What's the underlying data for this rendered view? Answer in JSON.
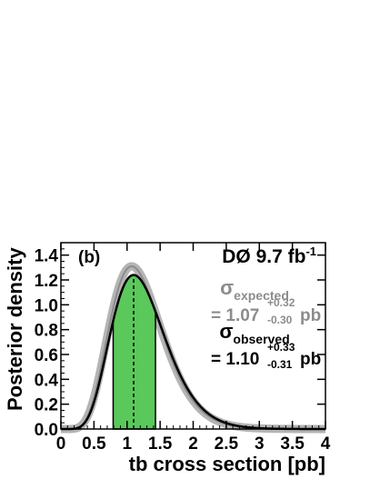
{
  "chart_data": {
    "type": "area",
    "panel_label": "(b)",
    "experiment_label": "DØ 9.7 fb",
    "experiment_label_sup": "-1",
    "xlabel": "tb cross section [pb]",
    "ylabel": "Posterior density",
    "xlim": [
      0,
      4
    ],
    "ylim": [
      0,
      1.5
    ],
    "x_ticks": [
      "0",
      "0.5",
      "1",
      "1.5",
      "2",
      "2.5",
      "3",
      "3.5",
      "4"
    ],
    "y_ticks": [
      "0.0",
      "0.2",
      "0.4",
      "0.6",
      "0.8",
      "1.0",
      "1.2",
      "1.4"
    ],
    "expected": {
      "label": "σ",
      "label_sub": "expected",
      "value_prefix": "= 1.07",
      "err_up": "+0.32",
      "err_down": "-0.30",
      "unit": "pb",
      "peak_x": 1.07,
      "peak_y": 1.31,
      "color": "#8c8c8c"
    },
    "observed": {
      "label": "σ",
      "label_sub": "observed",
      "value_prefix": "= 1.10",
      "err_up": "+0.33",
      "err_down": "-0.31",
      "unit": "pb",
      "peak_x": 1.1,
      "peak_y": 1.24,
      "color": "#000000"
    },
    "interval_68": [
      0.79,
      1.43
    ],
    "fill_color": "#5ac85a",
    "central_line_x": 1.1
  }
}
